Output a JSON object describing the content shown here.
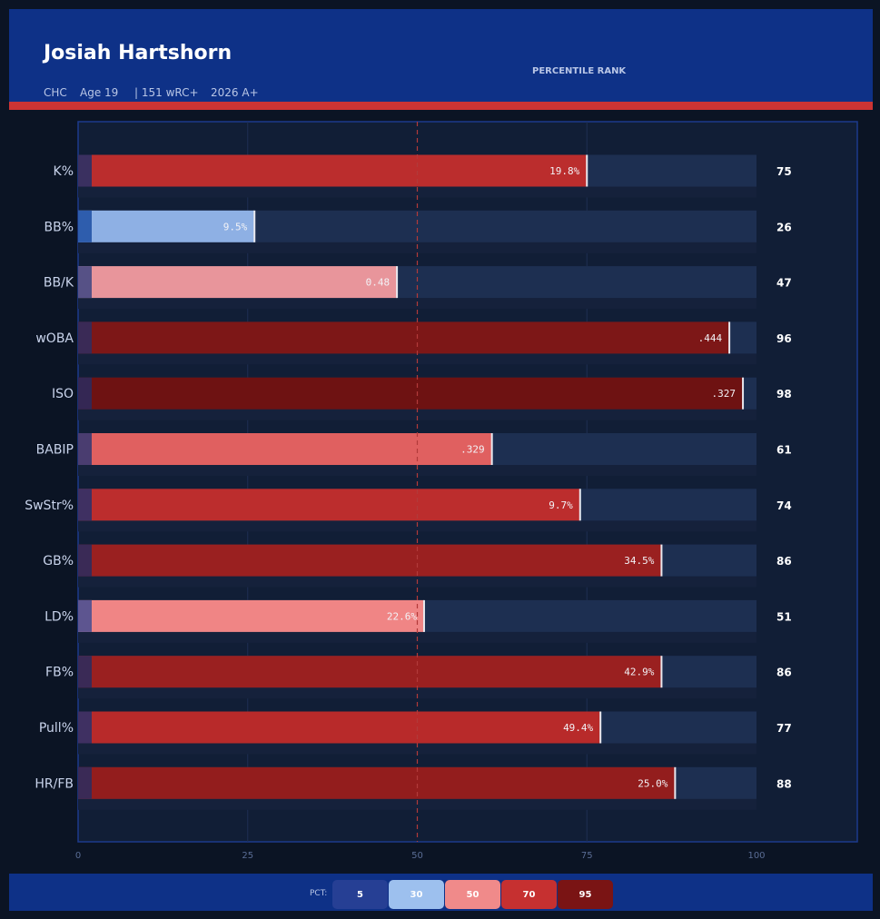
{
  "header": {
    "player_name": "Josiah Hartshorn",
    "team": "CHC",
    "age": "Age 19",
    "wrc": "| 151 wRC+",
    "level": "2026 A+",
    "chart_heading": "PERCENTILE RANK"
  },
  "legend": {
    "label": "PCT:",
    "chips": [
      {
        "label": "5",
        "color": "#263f94"
      },
      {
        "label": "30",
        "color": "#9dc0ee"
      },
      {
        "label": "50",
        "color": "#f08a8a"
      },
      {
        "label": "70",
        "color": "#c63030"
      },
      {
        "label": "95",
        "color": "#7a1414"
      }
    ]
  },
  "chart_data": {
    "type": "bar",
    "orientation": "horizontal",
    "title": "PERCENTILE RANK",
    "xlim": [
      0,
      100
    ],
    "xticks": [
      "0",
      "25",
      "50",
      "75",
      "100"
    ],
    "reference_line": 50,
    "categories": [
      "K%",
      "BB%",
      "BB/K",
      "wOBA",
      "ISO",
      "BABIP",
      "SwStr%",
      "GB%",
      "LD%",
      "FB%",
      "Pull%",
      "HR/FB"
    ],
    "percentiles": [
      75,
      26,
      47,
      96,
      98,
      61,
      74,
      86,
      51,
      86,
      77,
      88
    ],
    "value_labels": [
      "19.8%",
      "9.5%",
      "0.48",
      ".444",
      ".327",
      ".329",
      "9.7%",
      "34.5%",
      "22.6%",
      "42.9%",
      "49.4%",
      "25.0%"
    ],
    "bar_colors": [
      "#bb2d2d",
      "#8eb0e4",
      "#e8959b",
      "#7d1717",
      "#6e1212",
      "#e06060",
      "#bc2d2d",
      "#9a2020",
      "#f08585",
      "#9a2020",
      "#b82a2a",
      "#931d1d"
    ],
    "stub_colors": [
      "#3a3060",
      "#2e5dad",
      "#565186",
      "#3a2a56",
      "#342754",
      "#4a3d70",
      "#3f3062",
      "#3a2a56",
      "#5d5590",
      "#3a2a56",
      "#3f3062",
      "#3a2a56"
    ]
  }
}
